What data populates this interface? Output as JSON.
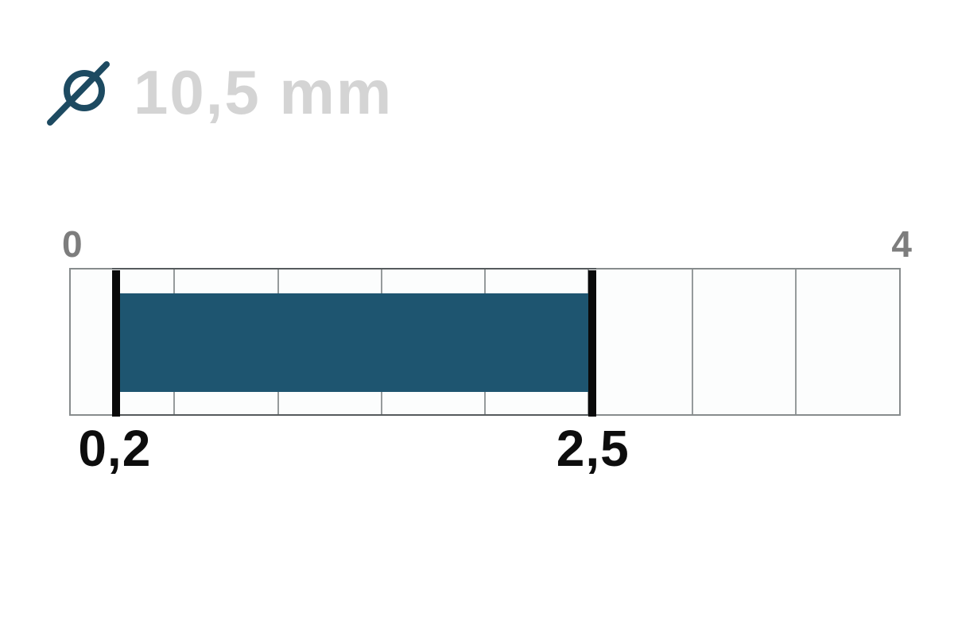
{
  "header": {
    "icon": "diameter-icon",
    "icon_glyph": "⌀",
    "value_label": "10,5 mm"
  },
  "gauge": {
    "scale_min_label": "0",
    "scale_max_label": "4",
    "range_start_label": "0,2",
    "range_end_label": "2,5"
  },
  "chart_data": {
    "type": "bar",
    "variant": "linear-range-gauge",
    "title": "⌀ 10,5 mm",
    "unit": "mm",
    "axis": {
      "min": 0,
      "max": 4,
      "tick_labels": [
        "0",
        "4"
      ],
      "segment_count": 8,
      "segment_step": 0.5
    },
    "series": [
      {
        "name": "diameter-working-range",
        "start": 0.2,
        "end": 2.5,
        "start_label": "0,2",
        "end_label": "2,5"
      }
    ],
    "legend": "none",
    "grid": "segment-dividers"
  },
  "colors": {
    "bar": "#1e5570",
    "icon": "#1d4a61",
    "value_text": "#d4d4d4",
    "scale_text": "#7d7d7d",
    "marker": "#0a0a0a",
    "range_label_text": "#0d0d0d",
    "track_fill": "#fcfdfd",
    "track_border": "#878c8d",
    "divider": "#969b9c",
    "range_edge": "#565b5d",
    "background": "#ffffff"
  }
}
